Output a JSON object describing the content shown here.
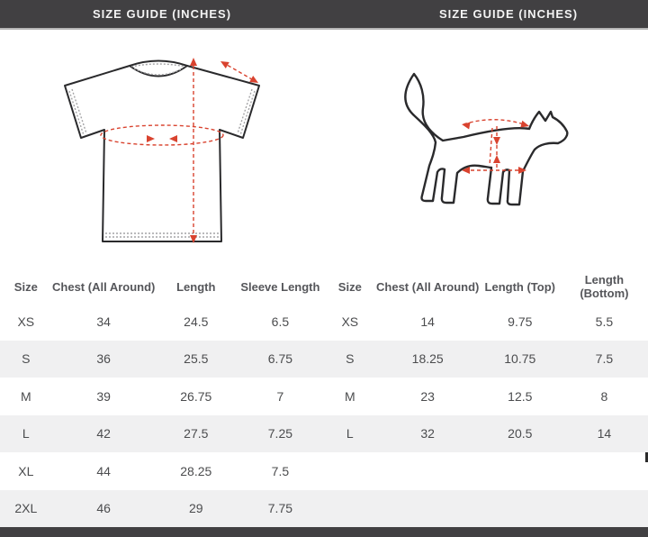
{
  "colors": {
    "bar_color": "#414042",
    "stripe_color": "#f0f0f1",
    "accent_red": "#d9432f",
    "outline_color": "#2a2a2c"
  },
  "panels": [
    {
      "header": "SIZE GUIDE (INCHES)",
      "diagram": "tshirt-measurement-diagram",
      "table": {
        "columns": [
          "Size",
          "Chest (All Around)",
          "Length",
          "Sleeve Length"
        ],
        "rows": [
          [
            "XS",
            "34",
            "24.5",
            "6.5"
          ],
          [
            "S",
            "36",
            "25.5",
            "6.75"
          ],
          [
            "M",
            "39",
            "26.75",
            "7"
          ],
          [
            "L",
            "42",
            "27.5",
            "7.25"
          ],
          [
            "XL",
            "44",
            "28.25",
            "7.5"
          ],
          [
            "2XL",
            "46",
            "29",
            "7.75"
          ]
        ]
      }
    },
    {
      "header": "SIZE GUIDE (INCHES)",
      "diagram": "cat-measurement-diagram",
      "table": {
        "columns": [
          "Size",
          "Chest (All Around)",
          "Length (Top)",
          "Length (Bottom)"
        ],
        "rows": [
          [
            "XS",
            "14",
            "9.75",
            "5.5"
          ],
          [
            "S",
            "18.25",
            "10.75",
            "7.5"
          ],
          [
            "M",
            "23",
            "12.5",
            "8"
          ],
          [
            "L",
            "32",
            "20.5",
            "14"
          ]
        ]
      }
    }
  ]
}
